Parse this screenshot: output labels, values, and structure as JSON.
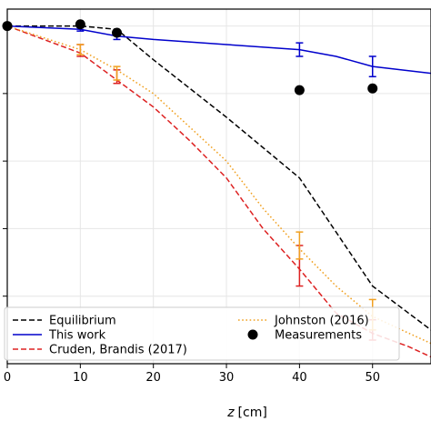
{
  "chart_data": {
    "type": "line",
    "title": "",
    "xlabel": "z [cm]",
    "xlabel_italic": "z",
    "xlabel_unit": "[cm]",
    "ylabel": "",
    "xlim": [
      0,
      58
    ],
    "ylim": [
      0,
      1.05
    ],
    "xticks": [
      0,
      10,
      20,
      30,
      40,
      50
    ],
    "yticks": [
      0.2,
      0.4,
      0.6,
      0.8,
      1.0
    ],
    "grid": true,
    "legend": {
      "placement": "bottom",
      "entries": [
        "Equilibrium",
        "This work",
        "Cruden, Brandis (2017)",
        "Johnston (2016)",
        "Measurements"
      ]
    },
    "series": [
      {
        "name": "Equilibrium",
        "color": "#000000",
        "style": "dashed",
        "x": [
          0,
          10,
          15,
          20,
          30,
          40,
          50,
          58
        ],
        "y": [
          1.0,
          1.0,
          0.99,
          0.9,
          0.73,
          0.55,
          0.23,
          0.1
        ]
      },
      {
        "name": "This work",
        "color": "#0000cc",
        "style": "solid",
        "x": [
          0,
          10,
          15,
          20,
          30,
          40,
          45,
          50,
          58
        ],
        "y": [
          1.0,
          0.99,
          0.97,
          0.96,
          0.945,
          0.93,
          0.91,
          0.88,
          0.86
        ],
        "error_bars": [
          {
            "x": 10,
            "y": 0.99,
            "low": 0.985,
            "high": 0.995
          },
          {
            "x": 15,
            "y": 0.97,
            "low": 0.96,
            "high": 0.98
          },
          {
            "x": 40,
            "y": 0.93,
            "low": 0.91,
            "high": 0.95
          },
          {
            "x": 50,
            "y": 0.88,
            "low": 0.85,
            "high": 0.91
          }
        ]
      },
      {
        "name": "Cruden, Brandis (2017)",
        "color": "#dd2222",
        "style": "dashed",
        "x": [
          0,
          5,
          10,
          15,
          20,
          25,
          30,
          35,
          40,
          45,
          50,
          55,
          58
        ],
        "y": [
          1.0,
          0.96,
          0.92,
          0.84,
          0.76,
          0.66,
          0.55,
          0.4,
          0.28,
          0.15,
          0.09,
          0.05,
          0.02
        ],
        "error_bars": [
          {
            "x": 10,
            "y": 0.93,
            "low": 0.91,
            "high": 0.945
          },
          {
            "x": 15,
            "y": 0.85,
            "low": 0.83,
            "high": 0.87
          },
          {
            "x": 40,
            "y": 0.29,
            "low": 0.23,
            "high": 0.35
          },
          {
            "x": 50,
            "y": 0.1,
            "low": 0.07,
            "high": 0.13
          }
        ]
      },
      {
        "name": "Johnston (2016)",
        "color": "#f0a020",
        "style": "dotted",
        "x": [
          0,
          5,
          10,
          15,
          20,
          25,
          30,
          35,
          40,
          45,
          50,
          55,
          58
        ],
        "y": [
          1.0,
          0.965,
          0.93,
          0.87,
          0.8,
          0.7,
          0.6,
          0.46,
          0.34,
          0.23,
          0.14,
          0.09,
          0.06
        ],
        "error_bars": [
          {
            "x": 10,
            "y": 0.93,
            "low": 0.915,
            "high": 0.945
          },
          {
            "x": 15,
            "y": 0.86,
            "low": 0.84,
            "high": 0.88
          },
          {
            "x": 40,
            "y": 0.35,
            "low": 0.31,
            "high": 0.39
          },
          {
            "x": 50,
            "y": 0.15,
            "low": 0.1,
            "high": 0.19
          }
        ]
      },
      {
        "name": "Measurements",
        "color": "#000000",
        "style": "markers",
        "x": [
          0,
          10,
          15,
          40,
          50
        ],
        "y": [
          1.0,
          1.005,
          0.98,
          0.81,
          0.815
        ]
      }
    ]
  }
}
